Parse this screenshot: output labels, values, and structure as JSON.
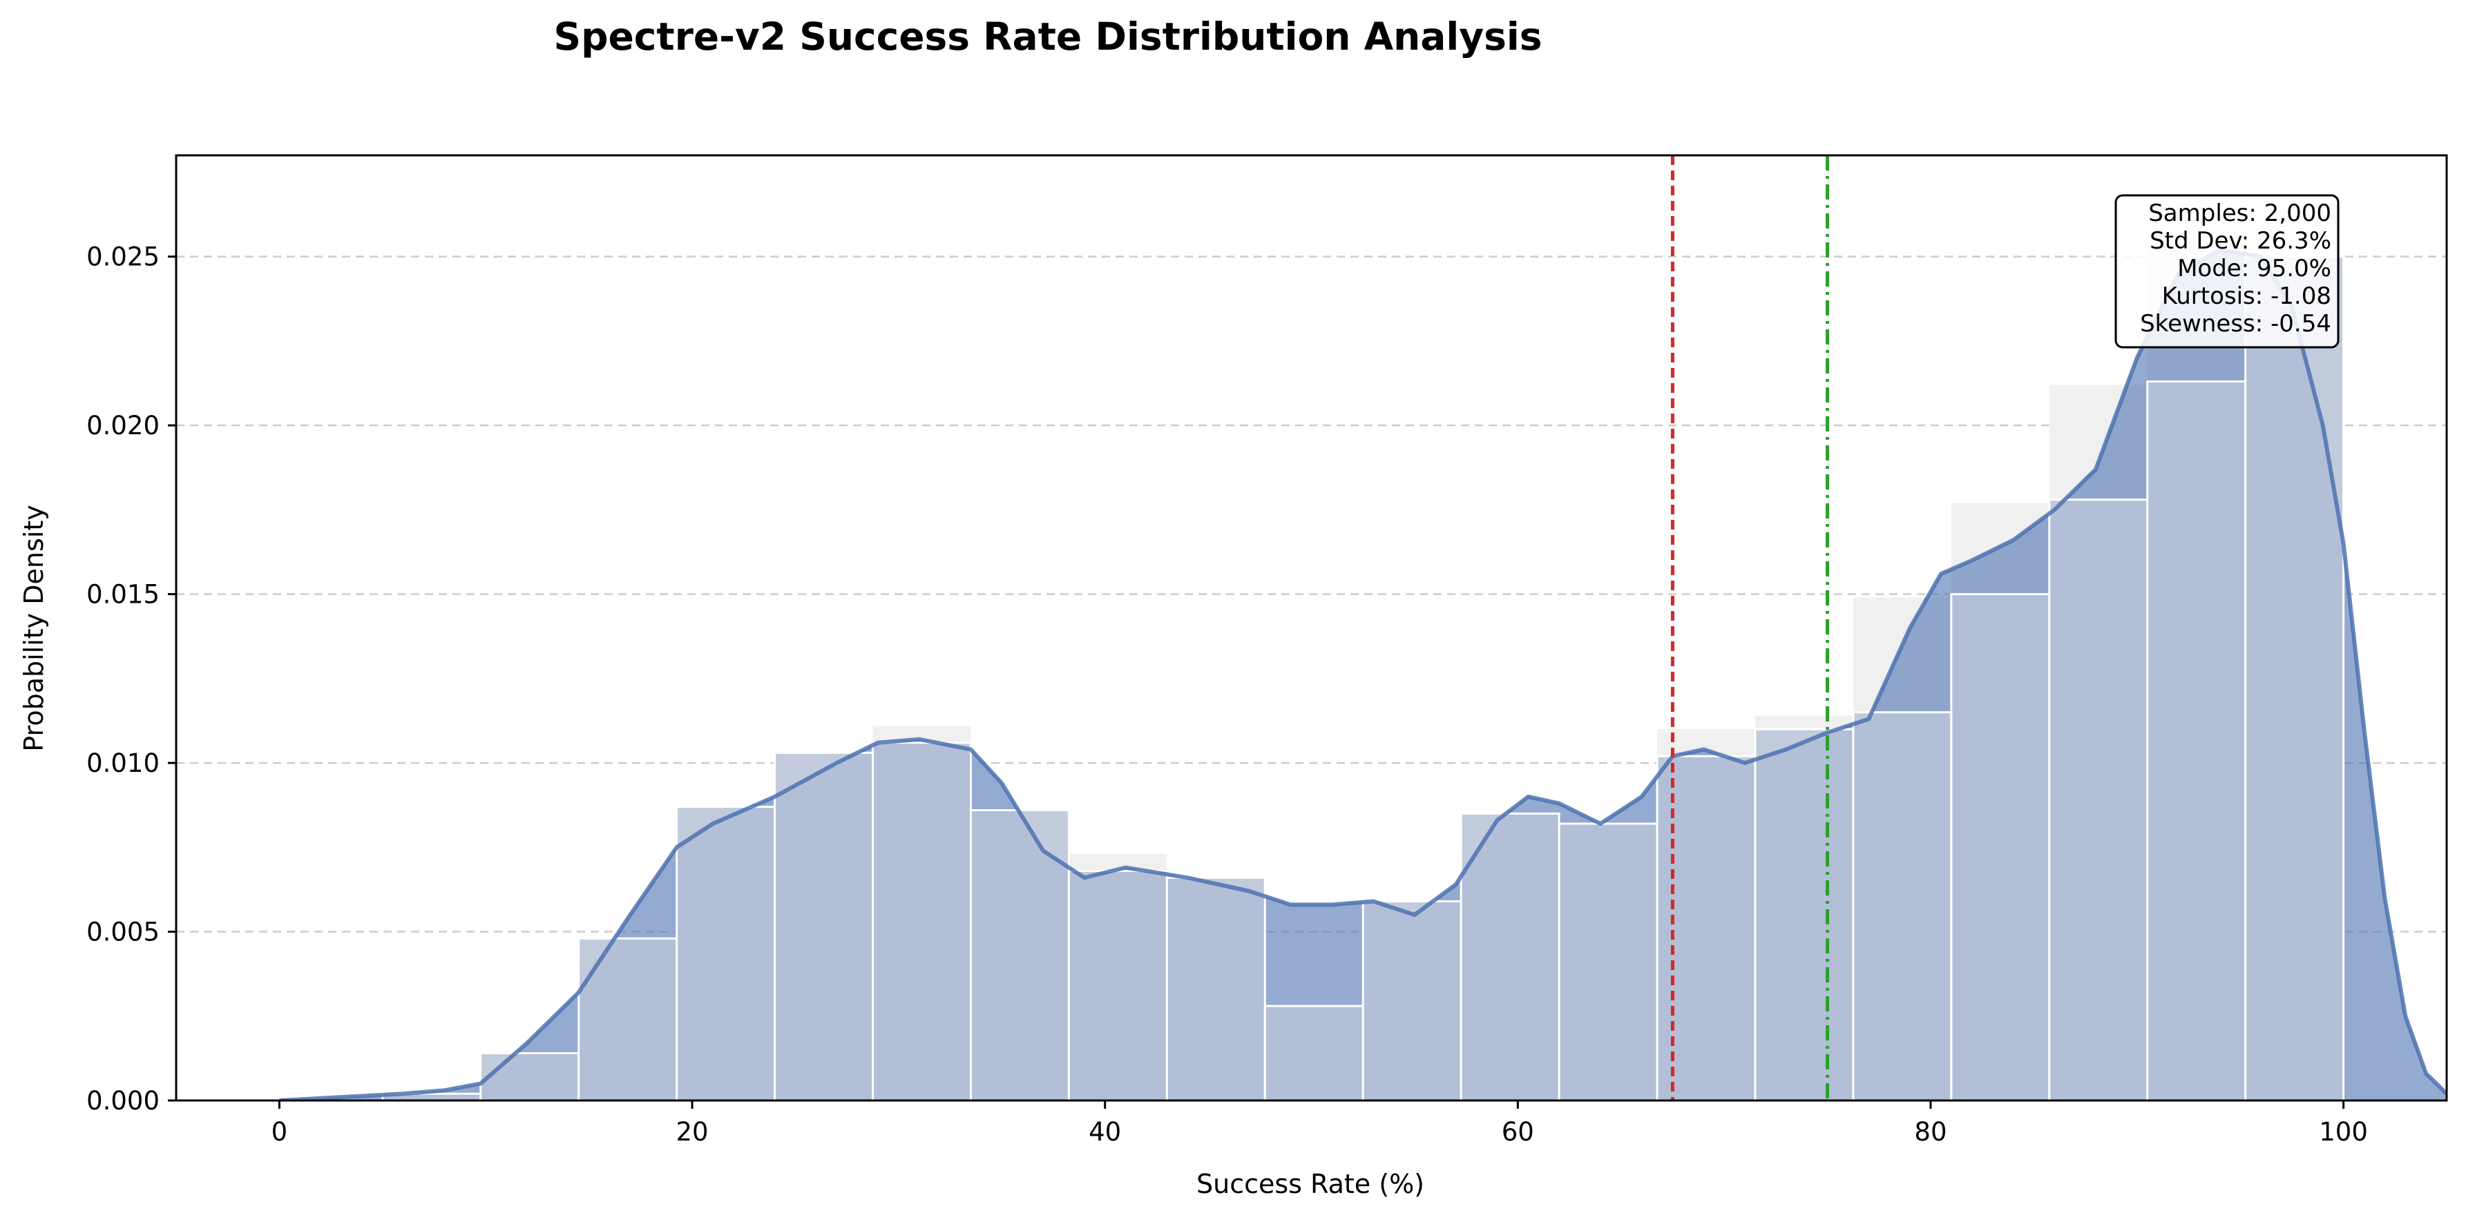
{
  "chart_data": {
    "type": "histogram",
    "title": "Spectre-v2 Success Rate Distribution Analysis",
    "xlabel": "Success Rate (%)",
    "ylabel": "Probability Density",
    "xlim": [
      -5,
      105
    ],
    "ylim": [
      0,
      0.028
    ],
    "x_ticks": [
      0,
      20,
      40,
      60,
      80,
      100
    ],
    "y_ticks": [
      0.0,
      0.005,
      0.01,
      0.015,
      0.02,
      0.025
    ],
    "grid": "y-dashed",
    "colors": {
      "kde_fill": "#4c72b0",
      "bar_fill": "#b8c4d8",
      "bar_edge": "#ffffff",
      "outline_hist": "#cccccc",
      "median_line": "#d62728",
      "mean_line": "#2ca02c"
    },
    "histogram": {
      "bin_edges": [
        5,
        9.75,
        14.5,
        19.25,
        24,
        28.75,
        33.5,
        38.25,
        43,
        47.75,
        52.5,
        57.25,
        62,
        66.75,
        71.5,
        76.25,
        81,
        85.75,
        90.5,
        95.25,
        100
      ],
      "density": [
        0.0002,
        0.0014,
        0.0048,
        0.0087,
        0.0103,
        0.0111,
        0.0086,
        0.0073,
        0.0066,
        0.0028,
        0.0059,
        0.0085,
        0.0082,
        0.011,
        0.0114,
        0.0149,
        0.0177,
        0.0212,
        0.0254,
        0.0246
      ],
      "visible_density": [
        0.0002,
        0.0014,
        0.0048,
        0.0087,
        0.0103,
        0.0106,
        0.0086,
        0.0068,
        0.0066,
        0.0028,
        0.0059,
        0.0085,
        0.0082,
        0.0102,
        0.011,
        0.0115,
        0.015,
        0.0178,
        0.0213,
        0.025
      ]
    },
    "kde": {
      "x": [
        0,
        3,
        6,
        8,
        9.75,
        12,
        14.5,
        17,
        19.25,
        21,
        24,
        27,
        29,
        31,
        33.5,
        35,
        37,
        39,
        41,
        44,
        47,
        49,
        51,
        53,
        55,
        57,
        59,
        60.5,
        62,
        64,
        66,
        67.5,
        69,
        71,
        73,
        75,
        77,
        79,
        80.5,
        82,
        84,
        86,
        88,
        90,
        92,
        94,
        96,
        97.5,
        99,
        100,
        101,
        102,
        103,
        104,
        105
      ],
      "y": [
        0.0,
        0.0001,
        0.0002,
        0.0003,
        0.0005,
        0.0017,
        0.0032,
        0.0055,
        0.0075,
        0.0082,
        0.009,
        0.01,
        0.0106,
        0.0107,
        0.0104,
        0.0094,
        0.0074,
        0.0066,
        0.0069,
        0.0066,
        0.0062,
        0.0058,
        0.0058,
        0.0059,
        0.0055,
        0.0064,
        0.0083,
        0.009,
        0.0088,
        0.0082,
        0.009,
        0.0102,
        0.0104,
        0.01,
        0.0104,
        0.0109,
        0.0113,
        0.014,
        0.0156,
        0.016,
        0.0166,
        0.0175,
        0.0187,
        0.022,
        0.0245,
        0.0252,
        0.025,
        0.0235,
        0.02,
        0.0165,
        0.011,
        0.006,
        0.0025,
        0.0008,
        0.0002
      ]
    },
    "reference_lines": [
      {
        "x": 67.5,
        "style": "dashed",
        "color": "#d62728"
      },
      {
        "x": 75.0,
        "style": "dashdot",
        "color": "#2ca02c"
      }
    ],
    "stats_box": [
      "Samples: 2,000",
      "Std Dev: 26.3%",
      "Mode: 95.0%",
      "Kurtosis: -1.08",
      "Skewness: -0.54"
    ]
  }
}
